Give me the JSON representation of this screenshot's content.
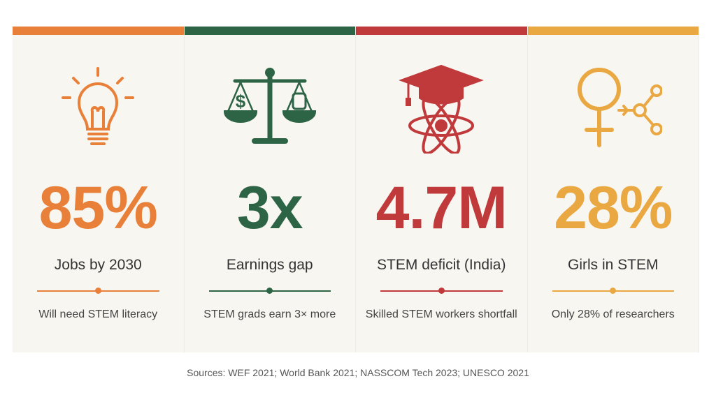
{
  "cards": [
    {
      "stat": "85%",
      "label": "Jobs by 2030",
      "description": "Will need STEM literacy"
    },
    {
      "stat": "3x",
      "label": "Earnings gap",
      "description": "STEM grads earn 3× more"
    },
    {
      "stat": "4.7M",
      "label": "STEM deficit (India)",
      "description": "Skilled STEM workers shortfall"
    },
    {
      "stat": "28%",
      "label": "Girls in STEM",
      "description": "Only 28% of researchers"
    }
  ],
  "sources": "Sources: WEF 2021; World Bank 2021; NASSCOM Tech 2023; UNESCO 2021"
}
